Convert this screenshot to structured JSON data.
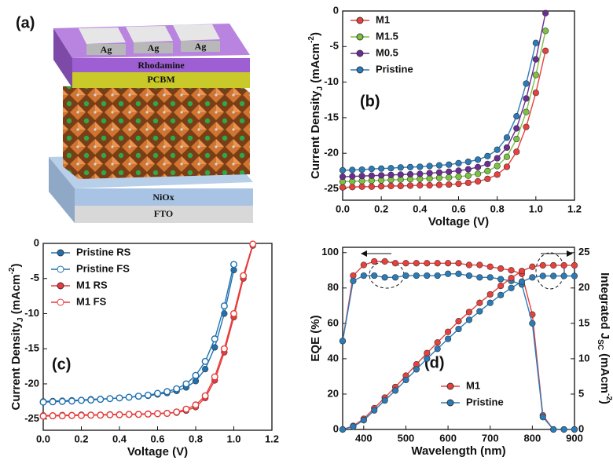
{
  "schematic": {
    "label": "(a)",
    "electrodes": [
      "Ag",
      "Ag",
      "Ag"
    ],
    "layers": [
      "Rhodamine",
      "PCBM",
      "NiOx",
      "FTO"
    ]
  },
  "chart_data": [
    {
      "type": "line",
      "label": "(b)",
      "xlabel": "Voltage (V)",
      "ylabel": [
        "Current Density",
        "J",
        " (mAcm",
        "-2",
        ")"
      ],
      "x": [
        0,
        0.05,
        0.1,
        0.15,
        0.2,
        0.25,
        0.3,
        0.35,
        0.4,
        0.45,
        0.5,
        0.55,
        0.6,
        0.65,
        0.7,
        0.75,
        0.8,
        0.85,
        0.9,
        0.95,
        1.0,
        1.05,
        1.1
      ],
      "xlim": [
        0,
        1.2
      ],
      "xticks": [
        {
          "value": 0,
          "label": "0.0"
        },
        0.2,
        0.4,
        0.6,
        0.8,
        {
          "value": 1,
          "label": "1.0"
        },
        1.2
      ],
      "ylim": [
        -26.6,
        0
      ],
      "yticks": [
        0,
        -5,
        -10,
        -15,
        -20,
        -25
      ],
      "legend": "upper left",
      "series": [
        {
          "name": "M1",
          "color": "#e8403c",
          "marker": "filled",
          "values": [
            -24.8,
            -24.75,
            -24.7,
            -24.7,
            -24.65,
            -24.6,
            -24.6,
            -24.55,
            -24.5,
            -24.5,
            -24.45,
            -24.4,
            -24.3,
            -24.15,
            -23.95,
            -23.6,
            -23.0,
            -21.9,
            -19.8,
            -16.3,
            -11.5,
            -5.6,
            null
          ]
        },
        {
          "name": "M1.5",
          "color": "#7cc242",
          "marker": "filled",
          "values": [
            -24.0,
            -23.95,
            -23.9,
            -23.85,
            -23.8,
            -23.75,
            -23.7,
            -23.65,
            -23.6,
            -23.55,
            -23.45,
            -23.4,
            -23.3,
            -23.15,
            -22.9,
            -22.5,
            -21.8,
            -20.5,
            -18.0,
            -14.2,
            -9.0,
            -2.8,
            null
          ]
        },
        {
          "name": "M0.5",
          "color": "#6b2d92",
          "marker": "filled",
          "values": [
            -23.3,
            -23.25,
            -23.2,
            -23.15,
            -23.1,
            -23.05,
            -23.0,
            -22.95,
            -22.9,
            -22.8,
            -22.7,
            -22.6,
            -22.45,
            -22.25,
            -21.95,
            -21.5,
            -20.7,
            -19.2,
            -16.5,
            -12.3,
            -6.8,
            -0.3,
            null
          ]
        },
        {
          "name": "Pristine",
          "color": "#2a7cb9",
          "marker": "filled",
          "values": [
            -22.4,
            -22.35,
            -22.3,
            -22.2,
            -22.15,
            -22.1,
            -22.0,
            -21.95,
            -21.9,
            -21.8,
            -21.7,
            -21.6,
            -21.4,
            -21.2,
            -20.9,
            -20.4,
            -19.5,
            -17.8,
            -14.8,
            -10.2,
            -4.5,
            null,
            null
          ]
        }
      ]
    },
    {
      "type": "line",
      "label": "(c)",
      "xlabel": "Voltage (V)",
      "ylabel": [
        "Current Density",
        "J",
        " (mAcm",
        "-2",
        ")"
      ],
      "x": [
        0,
        0.05,
        0.1,
        0.15,
        0.2,
        0.25,
        0.3,
        0.35,
        0.4,
        0.45,
        0.5,
        0.55,
        0.6,
        0.65,
        0.7,
        0.75,
        0.8,
        0.85,
        0.9,
        0.95,
        1.0,
        1.05,
        1.1
      ],
      "xlim": [
        0,
        1.2
      ],
      "xticks": [
        {
          "value": 0,
          "label": "0.0"
        },
        0.2,
        0.4,
        0.6,
        0.8,
        {
          "value": 1,
          "label": "1.0"
        },
        1.2
      ],
      "ylim": [
        -26.6,
        0
      ],
      "yticks": [
        0,
        -5,
        -10,
        -15,
        -20,
        -25
      ],
      "legend": "upper left",
      "series": [
        {
          "name": "Pristine RS",
          "color": "#1f70b0",
          "marker": "filled",
          "values": [
            -22.5,
            -22.45,
            -22.4,
            -22.35,
            -22.3,
            -22.2,
            -22.15,
            -22.1,
            -22.0,
            -21.9,
            -21.8,
            -21.7,
            -21.5,
            -21.3,
            -21.0,
            -20.5,
            -19.6,
            -17.9,
            -14.8,
            -10.0,
            -3.8,
            null,
            null
          ]
        },
        {
          "name": "Pristine FS",
          "color": "#1f70b0",
          "marker": "open",
          "values": [
            -22.6,
            -22.55,
            -22.5,
            -22.45,
            -22.35,
            -22.3,
            -22.2,
            -22.1,
            -22.0,
            -21.9,
            -21.75,
            -21.6,
            -21.35,
            -21.1,
            -20.7,
            -20.0,
            -18.8,
            -16.8,
            -13.6,
            -8.9,
            -3.0,
            null,
            null
          ]
        },
        {
          "name": "M1 RS",
          "color": "#e83a3a",
          "marker": "filled",
          "values": [
            -24.5,
            -24.5,
            -24.45,
            -24.45,
            -24.4,
            -24.4,
            -24.4,
            -24.35,
            -24.35,
            -24.3,
            -24.3,
            -24.25,
            -24.2,
            -24.15,
            -24.1,
            -23.8,
            -23.3,
            -22.0,
            -19.5,
            -15.5,
            -10.5,
            -5.0,
            -0.3
          ]
        },
        {
          "name": "M1 FS",
          "color": "#e83a3a",
          "marker": "open",
          "values": [
            -24.6,
            -24.55,
            -24.55,
            -24.5,
            -24.5,
            -24.45,
            -24.45,
            -24.4,
            -24.4,
            -24.35,
            -24.35,
            -24.3,
            -24.25,
            -24.2,
            -24.0,
            -23.6,
            -23.0,
            -21.7,
            -19.0,
            -15.0,
            -10.0,
            -4.6,
            -0.1
          ]
        }
      ]
    },
    {
      "type": "line",
      "label": "(d)",
      "xlabel": "Wavelength (nm)",
      "ylabel": [
        "EQE (%)"
      ],
      "y2label": [
        "Integrated J",
        "SC",
        " (mAcm",
        "-2",
        ")"
      ],
      "x": [
        350,
        375,
        400,
        425,
        450,
        475,
        500,
        525,
        550,
        575,
        600,
        625,
        650,
        675,
        700,
        725,
        750,
        775,
        800,
        825,
        850,
        875,
        900
      ],
      "xlim": [
        350,
        900
      ],
      "xticks": [
        400,
        500,
        600,
        700,
        800,
        900
      ],
      "ylim": [
        0,
        103
      ],
      "yticks": [
        0,
        20,
        40,
        60,
        80,
        100
      ],
      "y2lim": [
        0,
        25.75
      ],
      "y2ticks": [
        0,
        5,
        10,
        15,
        20,
        25
      ],
      "legend": "lower right",
      "series": [
        {
          "name": "M1",
          "color": "#e8403c",
          "marker": "filled",
          "values": [
            50,
            87,
            93,
            95,
            95,
            94,
            94,
            94,
            94,
            94,
            94,
            94,
            93,
            93,
            92,
            91,
            90,
            88,
            65,
            8,
            0,
            0,
            0
          ]
        },
        {
          "name": "Pristine",
          "color": "#2a7cb9",
          "marker": "filled",
          "values": [
            50,
            84,
            87,
            87,
            86,
            86,
            87,
            87,
            87,
            87,
            88,
            88,
            87,
            86,
            86,
            85,
            84,
            82,
            60,
            7,
            0,
            0,
            0
          ]
        },
        {
          "color": "#e8403c",
          "marker": "filled",
          "axis": "y2",
          "values": [
            0,
            0.5,
            1.5,
            3,
            4.5,
            6,
            7.6,
            9.2,
            10.8,
            12.3,
            13.8,
            15.3,
            16.6,
            17.9,
            19.1,
            20.3,
            21.4,
            22.4,
            23.0,
            23.2,
            23.2,
            23.2,
            23.2
          ]
        },
        {
          "color": "#2a7cb9",
          "marker": "filled",
          "axis": "y2",
          "values": [
            0,
            0.4,
            1.3,
            2.7,
            4.1,
            5.5,
            7.0,
            8.5,
            10.0,
            11.4,
            12.8,
            14.2,
            15.5,
            16.7,
            17.9,
            19.0,
            20.0,
            20.9,
            21.5,
            21.7,
            21.7,
            21.7,
            21.7
          ]
        }
      ]
    }
  ]
}
